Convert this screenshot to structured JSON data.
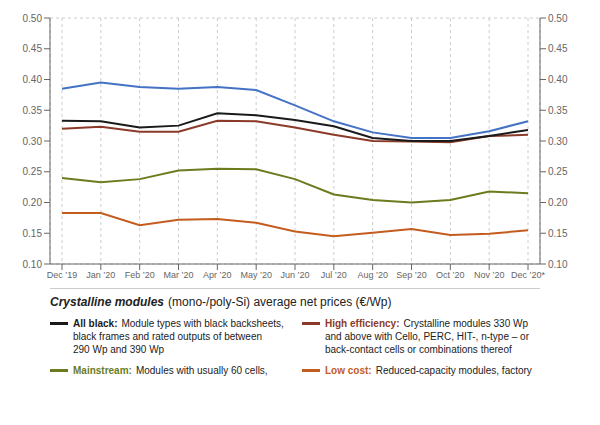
{
  "chart_data": {
    "type": "line",
    "title": "Crystalline modules",
    "subtitle": "(mono-/poly-Si) average net prices (€/Wp)",
    "categories": [
      "Dec ’19",
      "Jan ’20",
      "Feb ’20",
      "Mar ’20",
      "Apr ’20",
      "May ’20",
      "Jun ’20",
      "Jul ’20",
      "Aug ’20",
      "Sep ’20",
      "Oct ’20",
      "Nov ’20",
      "Dec ’20*"
    ],
    "series": [
      {
        "color": "#4472c4",
        "values": [
          0.385,
          0.395,
          0.388,
          0.385,
          0.388,
          0.383,
          0.358,
          0.332,
          0.314,
          0.305,
          0.305,
          0.316,
          0.332
        ]
      },
      {
        "name": "All black:",
        "description": [
          "Module types with black backsheets,",
          "black frames and rated outputs of between",
          "290 Wp and 390 Wp"
        ],
        "color": "#1a1a1a",
        "values": [
          0.333,
          0.332,
          0.322,
          0.325,
          0.345,
          0.342,
          0.334,
          0.324,
          0.305,
          0.3,
          0.3,
          0.308,
          0.318
        ]
      },
      {
        "name": "High efficiency:",
        "description": [
          "Crystalline modules 330 Wp",
          "and above with Cello, PERC, HIT-, n-type – or",
          "back-contact cells or combinations thereof"
        ],
        "color": "#8b3a2a",
        "values": [
          0.32,
          0.323,
          0.315,
          0.315,
          0.333,
          0.332,
          0.322,
          0.31,
          0.3,
          0.299,
          0.298,
          0.308,
          0.31
        ]
      },
      {
        "name": "Mainstream:",
        "description": [
          "Modules with usually 60 cells,"
        ],
        "color": "#6b7c1e",
        "values": [
          0.24,
          0.233,
          0.238,
          0.252,
          0.255,
          0.254,
          0.238,
          0.213,
          0.204,
          0.2,
          0.204,
          0.218,
          0.215
        ]
      },
      {
        "name": "Low cost:",
        "description": [
          "Reduced-capacity modules, factory"
        ],
        "color": "#c45c1e",
        "values": [
          0.183,
          0.183,
          0.163,
          0.172,
          0.173,
          0.167,
          0.153,
          0.145,
          0.151,
          0.157,
          0.147,
          0.149,
          0.155
        ]
      }
    ],
    "ylim": [
      0.1,
      0.5
    ],
    "yticks": [
      {
        "value": 0.1,
        "label": "0.10"
      },
      0.15,
      {
        "value": 0.2,
        "label": "0.20"
      },
      0.25,
      {
        "value": 0.3,
        "label": "0.30"
      },
      0.35,
      {
        "value": 0.4,
        "label": "0.40"
      },
      0.45,
      {
        "value": 0.5,
        "label": "0.50"
      }
    ],
    "y2lim": [
      0.1,
      0.5
    ],
    "y2ticks": [
      {
        "value": 0.1,
        "label": "0.10"
      },
      0.15,
      {
        "value": 0.2,
        "label": "0.20"
      },
      0.25,
      {
        "value": 0.3,
        "label": "0.30"
      },
      0.35,
      {
        "value": 0.4,
        "label": "0.40"
      },
      0.45,
      {
        "value": 0.5,
        "label": "0.50"
      }
    ],
    "grid": true
  }
}
